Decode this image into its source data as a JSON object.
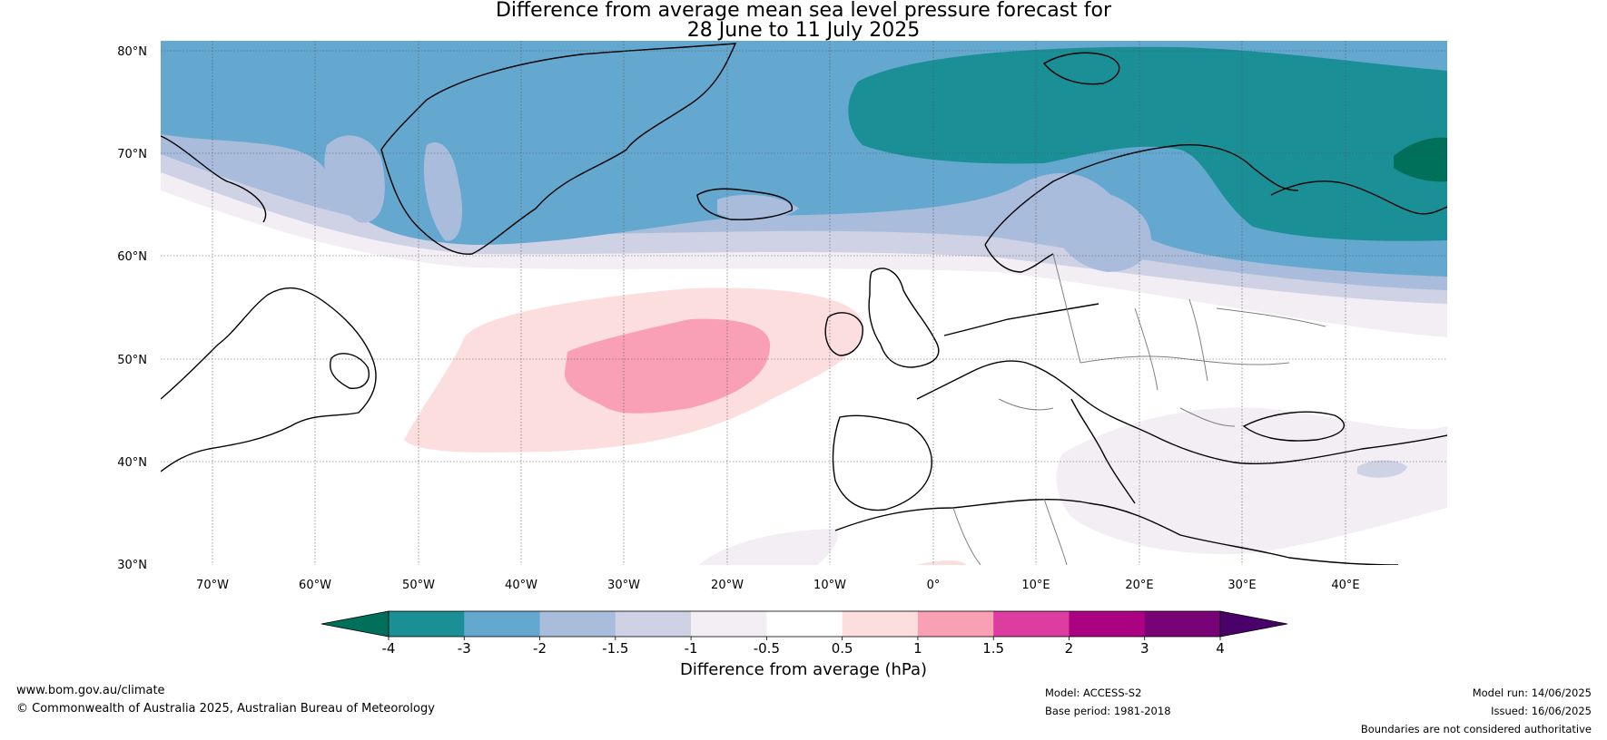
{
  "title": {
    "line1": "Difference from average mean sea level pressure forecast for",
    "line2": "28 June to 11 July 2025"
  },
  "map": {
    "lat_ticks": [
      "80°N",
      "70°N",
      "60°N",
      "50°N",
      "40°N",
      "30°N"
    ],
    "lon_ticks": [
      "70°W",
      "60°W",
      "50°W",
      "40°W",
      "30°W",
      "20°W",
      "10°W",
      "0°",
      "10°E",
      "20°E",
      "30°E",
      "40°E"
    ],
    "lat_range": [
      30,
      80
    ],
    "lon_range": [
      -75,
      50
    ]
  },
  "colorbar": {
    "label": "Difference from average (hPa)",
    "ticks": [
      "-4",
      "-3",
      "-2",
      "-1.5",
      "-1",
      "-0.5",
      "0.5",
      "1",
      "1.5",
      "2",
      "3",
      "4"
    ],
    "colors": [
      "#00705a",
      "#1a8f96",
      "#64a8cf",
      "#a9bcdc",
      "#cfd1e5",
      "#f2eef4",
      "#ffffff",
      "#fddedf",
      "#f9a0b5",
      "#dd3ca0",
      "#aa0281",
      "#780377",
      "#4a016a"
    ]
  },
  "footer": {
    "website": "www.bom.gov.au/climate",
    "copyright": "© Commonwealth of Australia 2025, Australian Bureau of Meteorology",
    "model": "Model: ACCESS-S2",
    "base_period": "Base period: 1981-2018",
    "model_run": "Model run: 14/06/2025",
    "issued": "Issued: 16/06/2025",
    "disclaimer": "Boundaries are not considered authoritative"
  }
}
